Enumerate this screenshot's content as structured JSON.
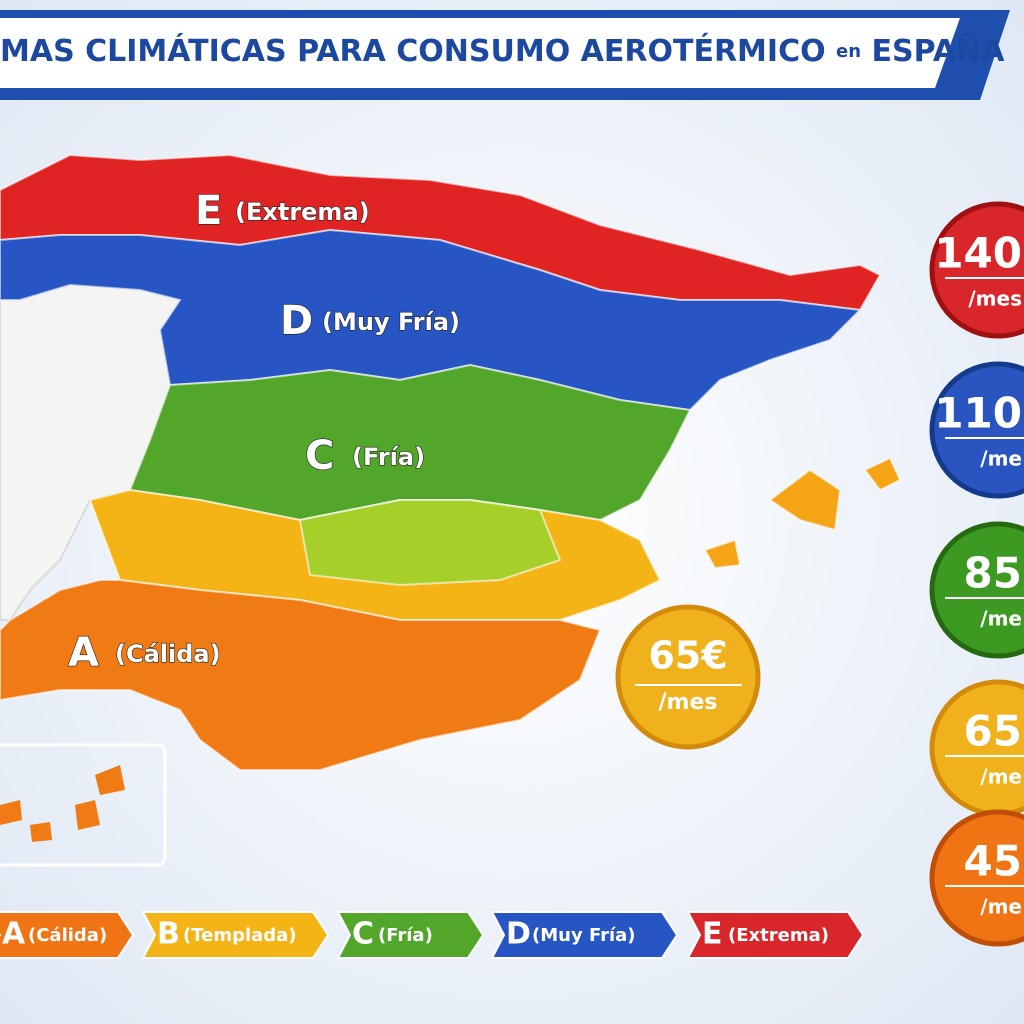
{
  "header": {
    "title": "MAS CLIMÁTICAS PARA CONSUMO AEROTÉRMICO",
    "title_small": "en",
    "title_end": "ESPAÑA"
  },
  "map": {
    "zones": [
      {
        "letter": "E",
        "label": "(Extrema)"
      },
      {
        "letter": "D",
        "label": "(Muy Fría)"
      },
      {
        "letter": "C",
        "label": "(Fría)"
      },
      {
        "letter": "A",
        "label": "(Cálida)"
      }
    ],
    "badge": {
      "amount": "65€",
      "unit": "/mes"
    }
  },
  "price_badges": [
    {
      "amount": "140",
      "unit": "/mes"
    },
    {
      "amount": "110",
      "unit": "/me"
    },
    {
      "amount": "85",
      "unit": "/me"
    },
    {
      "amount": "65",
      "unit": "/me"
    },
    {
      "amount": "45",
      "unit": "/me"
    }
  ],
  "legend": [
    {
      "letter": "A",
      "label": "(Cálida)"
    },
    {
      "letter": "B",
      "label": "(Templada)"
    },
    {
      "letter": "C",
      "label": "(Fría)"
    },
    {
      "letter": "D",
      "label": "(Muy Fría)"
    },
    {
      "letter": "E",
      "label": "(Extrema)"
    }
  ]
}
